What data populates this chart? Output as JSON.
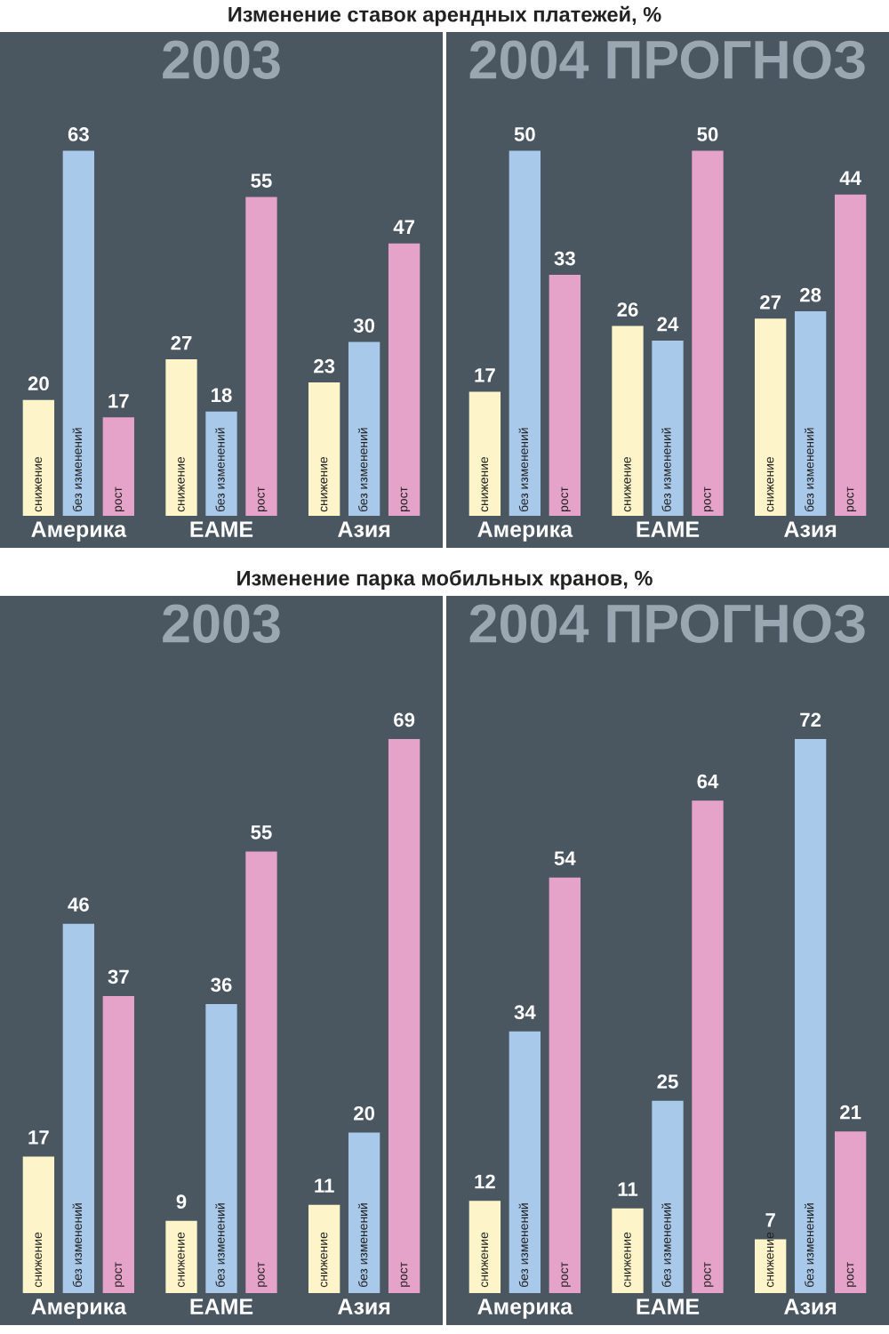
{
  "chart_data": [
    {
      "type": "bar",
      "title": "Изменение ставок арендных платежей, %",
      "subtitle": "2003",
      "categories": [
        "Америка",
        "EAME",
        "Азия"
      ],
      "series": [
        {
          "name": "снижение",
          "color": "#fdf5c9",
          "values": [
            20,
            27,
            23
          ]
        },
        {
          "name": "без изменений",
          "color": "#a9c9ea",
          "values": [
            63,
            18,
            30
          ]
        },
        {
          "name": "рост",
          "color": "#e6a3c9",
          "values": [
            17,
            55,
            47
          ]
        }
      ],
      "data_labels": true,
      "legend": false,
      "grid": false,
      "tick_labels": "x"
    },
    {
      "type": "bar",
      "subtitle": "2004 ПРОГНОЗ",
      "categories": [
        "Америка",
        "EAME",
        "Азия"
      ],
      "series": [
        {
          "name": "снижение",
          "color": "#fdf5c9",
          "values": [
            17,
            26,
            27
          ]
        },
        {
          "name": "без изменений",
          "color": "#a9c9ea",
          "values": [
            50,
            24,
            28
          ]
        },
        {
          "name": "рост",
          "color": "#e6a3c9",
          "values": [
            33,
            50,
            44
          ]
        }
      ],
      "data_labels": true,
      "legend": false,
      "grid": false,
      "tick_labels": "x"
    },
    {
      "type": "bar",
      "title": "Изменение парка мобильных кранов, %",
      "subtitle": "2003",
      "categories": [
        "Америка",
        "EAME",
        "Азия"
      ],
      "series": [
        {
          "name": "снижение",
          "color": "#fdf5c9",
          "values": [
            17,
            9,
            11
          ]
        },
        {
          "name": "без изменений",
          "color": "#a9c9ea",
          "values": [
            46,
            36,
            20
          ]
        },
        {
          "name": "рост",
          "color": "#e6a3c9",
          "values": [
            37,
            55,
            69
          ]
        }
      ],
      "data_labels": true,
      "legend": false,
      "grid": false,
      "tick_labels": "x"
    },
    {
      "type": "bar",
      "subtitle": "2004 ПРОГНОЗ",
      "categories": [
        "Америка",
        "EAME",
        "Азия"
      ],
      "series": [
        {
          "name": "снижение",
          "color": "#fdf5c9",
          "values": [
            12,
            11,
            7
          ]
        },
        {
          "name": "без изменений",
          "color": "#a9c9ea",
          "values": [
            34,
            25,
            72
          ]
        },
        {
          "name": "рост",
          "color": "#e6a3c9",
          "values": [
            54,
            64,
            21
          ]
        }
      ],
      "data_labels": true,
      "legend": false,
      "grid": false,
      "tick_labels": "x"
    }
  ]
}
